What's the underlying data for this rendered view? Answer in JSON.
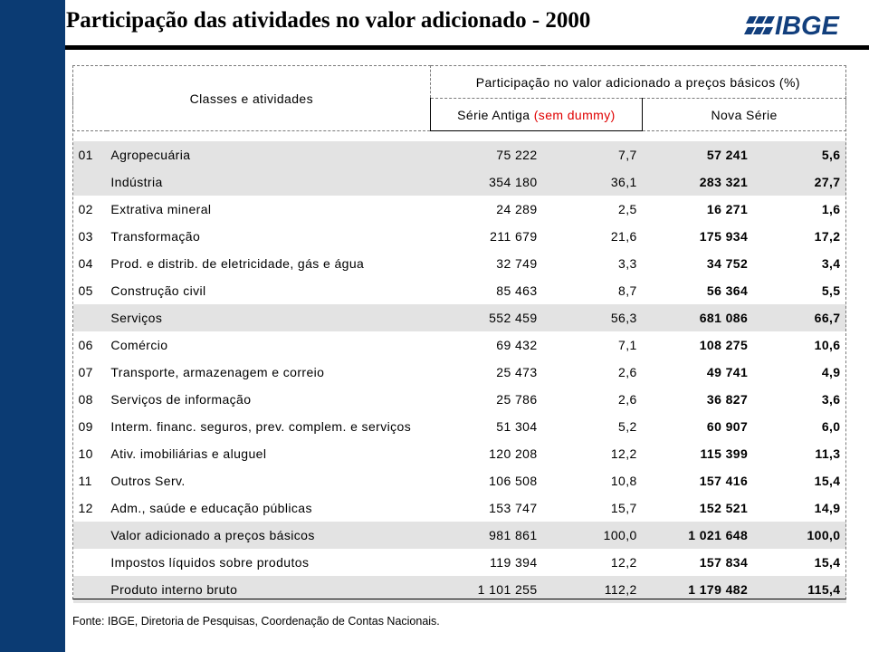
{
  "title": "Participação das atividades no valor adicionado - 2000",
  "logo": {
    "text": "IBGE"
  },
  "colors": {
    "sidebar": "#0b3b73",
    "logo": "#123f7d",
    "highlight_red": "#e00000",
    "shaded_row": "#e3e3e3"
  },
  "table": {
    "header": {
      "classes": "Classes e atividades",
      "participation": "Participação no valor adicionado a preços básicos (%)",
      "old_series": "Série Antiga",
      "old_series_note": "(sem dummy)",
      "new_series": "Nova Série"
    },
    "rows": [
      {
        "code": "01",
        "label": "Agropecuária",
        "old_value": "75 222",
        "old_pct": "7,7",
        "new_value": "57 241",
        "new_pct": "5,6"
      },
      {
        "code": "",
        "label": "Indústria",
        "old_value": "354 180",
        "old_pct": "36,1",
        "new_value": "283 321",
        "new_pct": "27,7"
      },
      {
        "code": "02",
        "label": "Extrativa mineral",
        "old_value": "24 289",
        "old_pct": "2,5",
        "new_value": "16 271",
        "new_pct": "1,6"
      },
      {
        "code": "03",
        "label": "Transformação",
        "old_value": "211 679",
        "old_pct": "21,6",
        "new_value": "175 934",
        "new_pct": "17,2"
      },
      {
        "code": "04",
        "label": "Prod. e  distrib. de eletricidade, gás e água",
        "old_value": "32 749",
        "old_pct": "3,3",
        "new_value": "34 752",
        "new_pct": "3,4"
      },
      {
        "code": "05",
        "label": "Construção civil",
        "old_value": "85 463",
        "old_pct": "8,7",
        "new_value": "56 364",
        "new_pct": "5,5"
      },
      {
        "code": "",
        "label": "Serviços",
        "old_value": "552 459",
        "old_pct": "56,3",
        "new_value": "681 086",
        "new_pct": "66,7"
      },
      {
        "code": "06",
        "label": "Comércio",
        "old_value": "69 432",
        "old_pct": "7,1",
        "new_value": "108 275",
        "new_pct": "10,6"
      },
      {
        "code": "07",
        "label": "Transporte, armazenagem e correio",
        "old_value": "25 473",
        "old_pct": "2,6",
        "new_value": "49 741",
        "new_pct": "4,9"
      },
      {
        "code": "08",
        "label": "Serviços de informação",
        "old_value": "25 786",
        "old_pct": "2,6",
        "new_value": "36 827",
        "new_pct": "3,6"
      },
      {
        "code": "09",
        "label": "Interm. financ. seguros, prev. complem. e serviços",
        "old_value": "51 304",
        "old_pct": "5,2",
        "new_value": "60 907",
        "new_pct": "6,0"
      },
      {
        "code": "10",
        "label": "Ativ. imobiliárias e aluguel",
        "old_value": "120 208",
        "old_pct": "12,2",
        "new_value": "115 399",
        "new_pct": "11,3"
      },
      {
        "code": "11",
        "label": "Outros Serv.",
        "old_value": "106 508",
        "old_pct": "10,8",
        "new_value": "157 416",
        "new_pct": "15,4"
      },
      {
        "code": "12",
        "label": "Adm., saúde e educação públicas",
        "old_value": "153 747",
        "old_pct": "15,7",
        "new_value": "152 521",
        "new_pct": "14,9"
      },
      {
        "code": "",
        "label": "Valor adicionado a preços básicos",
        "old_value": "981 861",
        "old_pct": "100,0",
        "new_value": "1 021 648",
        "new_pct": "100,0"
      },
      {
        "code": "",
        "label": "Impostos líquidos sobre produtos",
        "old_value": "119 394",
        "old_pct": "12,2",
        "new_value": "157 834",
        "new_pct": "15,4"
      },
      {
        "code": "",
        "label": "Produto interno bruto",
        "old_value": "1 101 255",
        "old_pct": "112,2",
        "new_value": "1 179 482",
        "new_pct": "115,4"
      }
    ]
  },
  "source": "Fonte: IBGE, Diretoria de Pesquisas, Coordenação de Contas Nacionais."
}
